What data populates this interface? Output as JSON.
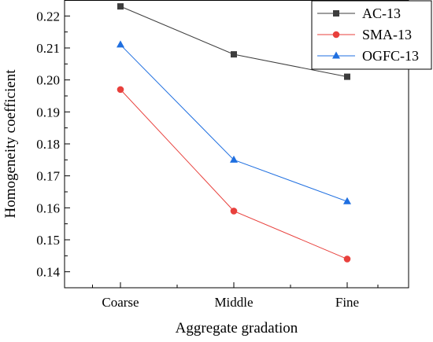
{
  "chart_data": {
    "type": "line",
    "xlabel": "Aggregate gradation",
    "ylabel": "Homogeneity coefficient",
    "categories": [
      "Coarse",
      "Middle",
      "Fine"
    ],
    "ylim": [
      0.135,
      0.225
    ],
    "yticks": [
      0.14,
      0.15,
      0.16,
      0.17,
      0.18,
      0.19,
      0.2,
      0.21,
      0.22
    ],
    "ytick_labels": [
      "0.14",
      "0.15",
      "0.16",
      "0.17",
      "0.18",
      "0.19",
      "0.20",
      "0.21",
      "0.22"
    ],
    "grid": false,
    "legend_position": "top-right",
    "series": [
      {
        "name": "AC-13",
        "values": [
          0.223,
          0.208,
          0.201
        ],
        "color": "#3d3d3d",
        "marker": "square"
      },
      {
        "name": "SMA-13",
        "values": [
          0.197,
          0.159,
          0.144
        ],
        "color": "#e8403c",
        "marker": "circle"
      },
      {
        "name": "OGFC-13",
        "values": [
          0.211,
          0.175,
          0.162
        ],
        "color": "#1f6fe0",
        "marker": "triangle"
      }
    ]
  }
}
